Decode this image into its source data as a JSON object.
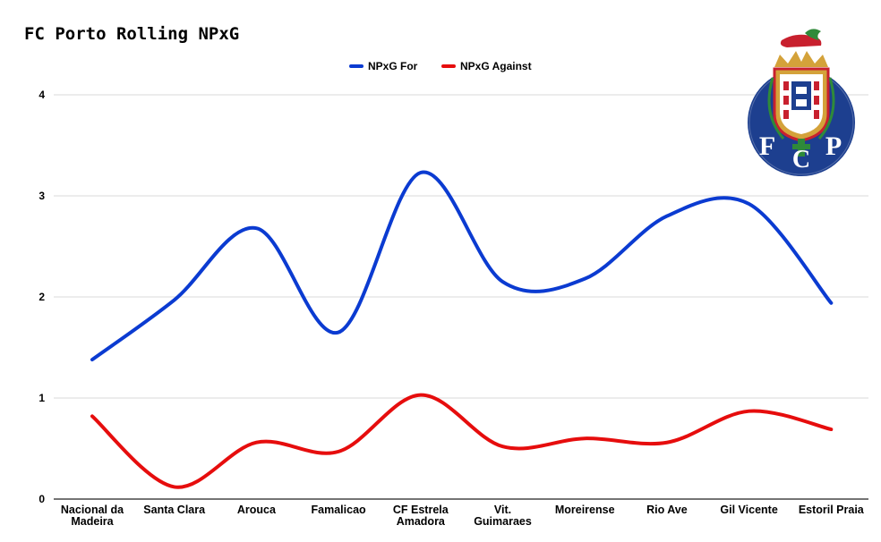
{
  "chart_data": {
    "type": "line",
    "title": "FC Porto Rolling NPxG",
    "xlabel": "",
    "ylabel": "",
    "ylim": [
      0,
      4
    ],
    "yticks": [
      0,
      1,
      2,
      3,
      4
    ],
    "grid": true,
    "legend": "top-center",
    "categories": [
      "Nacional da Madeira",
      "Santa Clara",
      "Arouca",
      "Famalicao",
      "CF Estrela Amadora",
      "Vit. Guimaraes",
      "Moreirense",
      "Rio Ave",
      "Gil Vicente",
      "Estoril Praia"
    ],
    "category_lines": [
      [
        "Nacional da",
        "Madeira"
      ],
      [
        "Santa Clara"
      ],
      [
        "Arouca"
      ],
      [
        "Famalicao"
      ],
      [
        "CF Estrela",
        "Amadora"
      ],
      [
        "Vit.",
        "Guimaraes"
      ],
      [
        "Moreirense"
      ],
      [
        "Rio Ave"
      ],
      [
        "Gil Vicente"
      ],
      [
        "Estoril Praia"
      ]
    ],
    "series": [
      {
        "name": "NPxG For",
        "color": "#0b3bd1",
        "values": [
          1.38,
          1.97,
          2.68,
          1.65,
          3.23,
          2.15,
          2.18,
          2.8,
          2.92,
          1.94
        ]
      },
      {
        "name": "NPxG Against",
        "color": "#e60d0d",
        "values": [
          0.82,
          0.12,
          0.56,
          0.47,
          1.03,
          0.52,
          0.6,
          0.56,
          0.87,
          0.69
        ]
      }
    ]
  },
  "logo": {
    "letters": [
      "F",
      "C",
      "P"
    ],
    "colors": {
      "blue": "#1d3f8f",
      "gold": "#d4a23a",
      "red": "#c8202e",
      "green": "#2f8a3a"
    }
  }
}
